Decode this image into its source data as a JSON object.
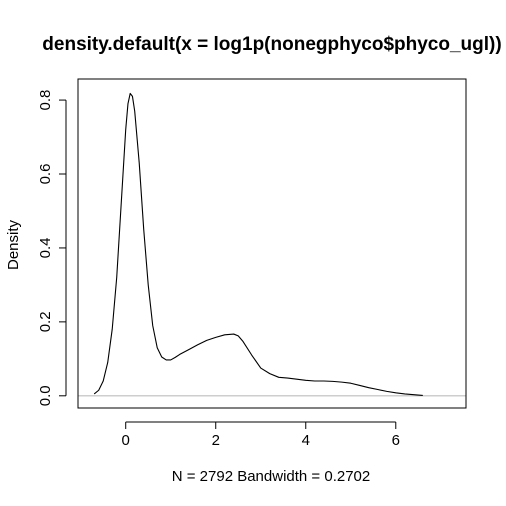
{
  "chart_data": {
    "type": "line",
    "title": "density.default(x = log1p(nonegphyco$phyco_ugl))",
    "xlabel": "N = 2792   Bandwidth = 0.2702",
    "ylabel": "Density",
    "xlim": [
      -1.06,
      7.56
    ],
    "ylim": [
      -0.033,
      0.857
    ],
    "x_ticks": [
      0,
      2,
      4,
      6
    ],
    "x_tick_labels": [
      "0",
      "2",
      "4",
      "6"
    ],
    "y_ticks": [
      0.0,
      0.2,
      0.4,
      0.6,
      0.8
    ],
    "y_tick_labels": [
      "0.0",
      "0.2",
      "0.4",
      "0.6",
      "0.8"
    ],
    "baseline": 0,
    "grid": false,
    "legend": "none",
    "colors": {
      "line": "#000000",
      "baseline": "#bebebe",
      "axes": "#000000"
    },
    "series": [
      {
        "x": [
          -0.7,
          -0.6,
          -0.5,
          -0.4,
          -0.3,
          -0.2,
          -0.1,
          0.0,
          0.05,
          0.1,
          0.15,
          0.2,
          0.3,
          0.4,
          0.5,
          0.6,
          0.7,
          0.8,
          0.9,
          1.0,
          1.1,
          1.2,
          1.4,
          1.6,
          1.8,
          2.0,
          2.2,
          2.4,
          2.5,
          2.6,
          2.8,
          3.0,
          3.2,
          3.4,
          3.6,
          3.8,
          4.0,
          4.2,
          4.4,
          4.6,
          4.8,
          5.0,
          5.2,
          5.4,
          5.6,
          5.8,
          6.0,
          6.2,
          6.4,
          6.6
        ],
        "y": [
          0.005,
          0.015,
          0.04,
          0.09,
          0.18,
          0.32,
          0.52,
          0.72,
          0.79,
          0.818,
          0.81,
          0.77,
          0.63,
          0.45,
          0.3,
          0.19,
          0.13,
          0.105,
          0.097,
          0.097,
          0.104,
          0.112,
          0.125,
          0.138,
          0.15,
          0.158,
          0.165,
          0.167,
          0.162,
          0.148,
          0.11,
          0.075,
          0.06,
          0.05,
          0.048,
          0.045,
          0.042,
          0.04,
          0.04,
          0.039,
          0.037,
          0.034,
          0.028,
          0.022,
          0.017,
          0.012,
          0.008,
          0.005,
          0.003,
          0.001
        ]
      }
    ]
  }
}
